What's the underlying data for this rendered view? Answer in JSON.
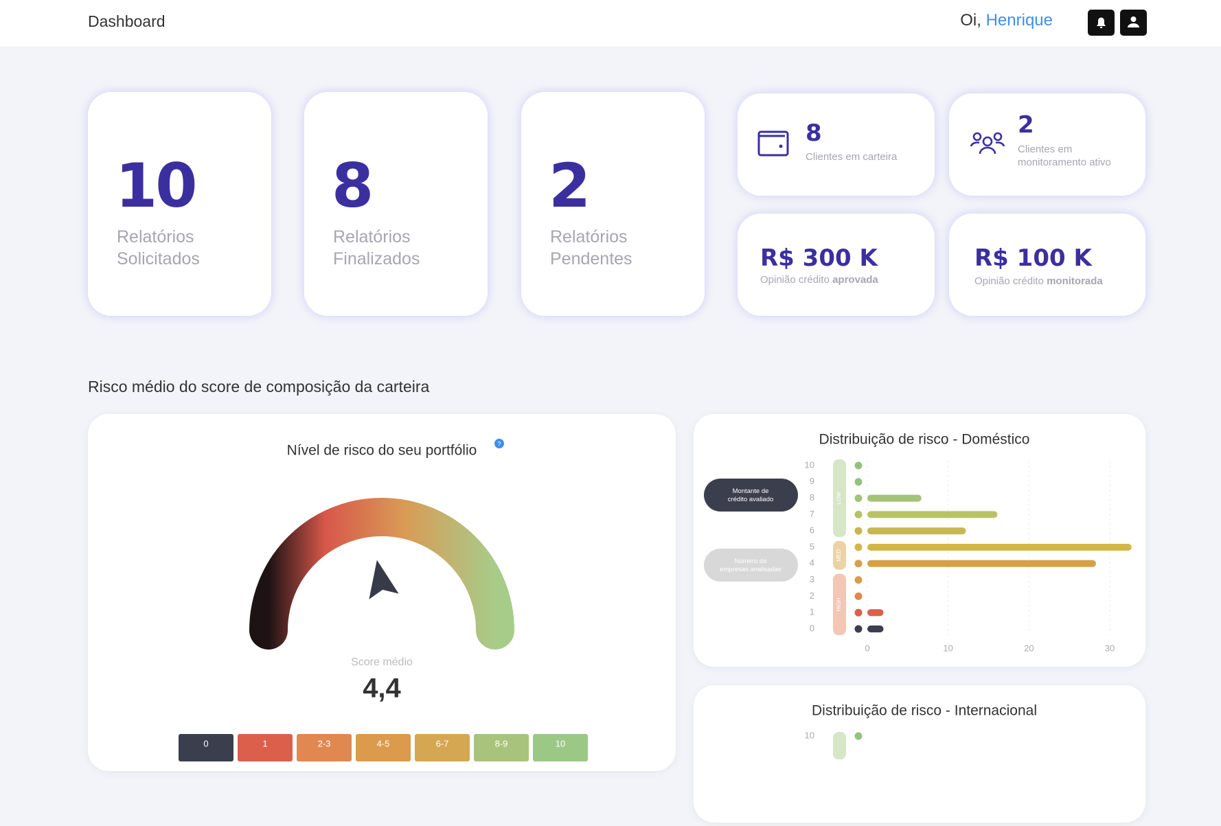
{
  "header": {
    "title": "Dashboard",
    "greeting": "Oi,",
    "user": "Henrique"
  },
  "stats": [
    {
      "value": "10",
      "label_1": "Relatórios",
      "label_2": "Solicitados"
    },
    {
      "value": "8",
      "label_1": "Relatórios",
      "label_2": "Finalizados"
    },
    {
      "value": "2",
      "label_1": "Relatórios",
      "label_2": "Pendentes"
    }
  ],
  "mini_stats": [
    {
      "value": "8",
      "label_1": "Clientes em carteira"
    },
    {
      "value": "2",
      "label_1": "Clientes em",
      "label_2": "monitoramento ativo"
    }
  ],
  "credit_stats": [
    {
      "value": "R$ 300 K",
      "caption": "Opinião crédito",
      "caption_bold": "aprovada"
    },
    {
      "value": "R$ 100 K",
      "caption": "Opinião crédito",
      "caption_bold": "monitorada"
    }
  ],
  "section_title": "Risco médio do score de composição da carteira",
  "gauge": {
    "title": "Nível de risco do seu portfólio",
    "help": "?",
    "label": "Score médio",
    "value": 4.4,
    "value_label": "4,4",
    "range": [
      0,
      10
    ],
    "scale": [
      {
        "label": "0",
        "color": "#3b3e4d"
      },
      {
        "label": "1",
        "color": "#dc5f4c"
      },
      {
        "label": "2-3",
        "color": "#e0884f"
      },
      {
        "label": "4-5",
        "color": "#dc9a4d"
      },
      {
        "label": "6-7",
        "color": "#d6a752"
      },
      {
        "label": "8-9",
        "color": "#a8c47c"
      },
      {
        "label": "10",
        "color": "#9cc886"
      }
    ]
  },
  "domestic": {
    "type": "bar",
    "title": "Distribuição de risco - Doméstico",
    "legend": [
      "Montante de crédito avaliado",
      "Número de empresas analisadas"
    ],
    "bands": [
      {
        "label": "LOW",
        "color": "#d6e6c6"
      },
      {
        "label": "MED",
        "color": "#ecd3a6"
      },
      {
        "label": "HIGH",
        "color": "#f3c6b6"
      }
    ],
    "categories": [
      "0",
      "1",
      "2",
      "3",
      "4",
      "5",
      "6",
      "7",
      "8",
      "9",
      "10"
    ],
    "values": [
      2,
      2,
      0,
      0,
      28.3,
      32.7,
      12.2,
      16.1,
      6.7,
      0,
      0
    ],
    "colors": [
      "#3b3e4d",
      "#dc5f4c",
      "#e0884f",
      "#dc9a4d",
      "#d6a046",
      "#d2b748",
      "#c8b654",
      "#b8c265",
      "#a3c378",
      "#93c27f",
      "#93c27f"
    ],
    "xlim": [
      0,
      30
    ],
    "xticks": [
      0,
      10,
      20,
      30
    ]
  },
  "international": {
    "title": "Distribuição de risco - Internacional",
    "first_tick": "10"
  }
}
